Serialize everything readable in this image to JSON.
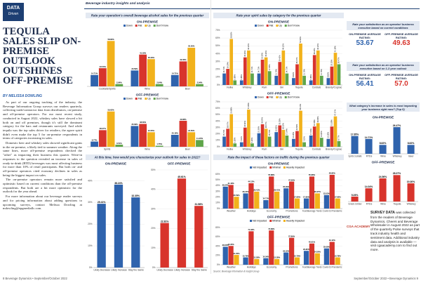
{
  "header": {
    "section": "DATA",
    "section_tag": "Driven",
    "tagline": "Beverage industry insights and analysis"
  },
  "article": {
    "title": "TEQUILA SALES SLIP ON-PREMISE OUTLOOK OUTSHINES OFF-PREMISE",
    "byline": "BY MELISSA DOWLING",
    "paragraphs": [
      "As part of our ongoing tracking of the industry, the Beverage Information Group surveys our readers quarterly, collecting trade/contractor data from distributors, on-premise and off-premise operators. For our most recent study, conducted in August 2022, whiskey sales have slowed a bit both on and off premises, though it's still the dominant category for the bars and restaurants surveyed. And while tequila was the top sales driver for retailers, the agave spirit didn't even make the top 5 for on-premise respondents in terms of categories increasing in sales.",
      "Domestic beer and whiskey sales showed significant gains in the on-premise, a likely tied to summer weather. Along the same lines, more off-premise respondents checked the \"other\" as impacting their business this quarter. Write-in responses to the question revealed an increase in sales of ready-to-drink (RTD) beverages was most affecting business for more than 10% of retail participants. But both on- and off-premise operators cited economy declines in sales as being the biggest impact on sales.",
      "The on-premise operators remain more satisfied and optimistic based on current conditions than the off-premise respondents. But both are a bit more optimistic for the outlook for the year ahead.",
      "For more information about our beverage reader surveys and for pricing information about adding questions to upcoming surveys, contact Melissa Dowling at mdowling@epgmediallc.com."
    ]
  },
  "ratings": [
    {
      "heading": "Rate your satisfaction as an operator/ business executive based on current conditions",
      "items": [
        {
          "label": "ON-PREMISE AVERAGE RATING:",
          "value": "53.67"
        },
        {
          "label": "OFF-PREMISE AVERAGE RATING:",
          "value": "49.63"
        }
      ]
    },
    {
      "heading": "Rate your satisfaction as an operator/ business executive based on 1-3 year outlook",
      "items": [
        {
          "label": "ON-PREMISE AVERAGE RATING:",
          "value": "56.41"
        },
        {
          "label": "OFF-PREMISE AVERAGE RATING:",
          "value": "57.0"
        }
      ]
    }
  ],
  "survey_note": {
    "logo": "CGA ACADEMY",
    "lead": "SURVEY DATA",
    "text": "was collected from the readers of Beverage Dynamics, Cheers and Beverage Wholesaler in August 2022 as part of the quarterly Pulse surveys that track industry health and sentiment data. Additional industry data and analysis is available — visit cgaacademy.com to find out more."
  },
  "footer": {
    "left": "8 Beverage Dynamics • September/October 2022",
    "right": "September/October 2022 • Beverage Dynamics 9"
  },
  "chart_data": [
    {
      "type": "bar",
      "title": "Rate your operation's overall beverage alcohol sales for the previous quarter",
      "subtitle": "ON-PREMISE",
      "legend": "top",
      "categories": [
        "Cocktails/Spirits",
        "Wine",
        "Beer"
      ],
      "ylim": [
        0,
        70
      ],
      "series": [
        {
          "name": "Down",
          "color": "#2f63ad",
          "values": [
            14.71,
            20.59,
            14.71
          ],
          "value_labels": [
            "14.71%",
            "20.59%",
            "14.71%"
          ]
        },
        {
          "name": "Flat",
          "color": "#d8342c",
          "values": [
            23.53,
            41.18,
            32.35
          ],
          "value_labels": [
            "23.53%",
            "41.18%",
            "32.35%"
          ]
        },
        {
          "name": "Up",
          "color": "#f2b21b",
          "values": [
            58.82,
            35.29,
            50.0
          ],
          "value_labels": [
            "58.82%",
            "35.29%",
            "50.00%"
          ]
        },
        {
          "name": "Don't Know",
          "color": "#5fa54a",
          "values": [
            2.94,
            2.94,
            2.94
          ],
          "value_labels": [
            "2.94%",
            "2.94%",
            "2.94%"
          ]
        }
      ]
    },
    {
      "type": "bar",
      "subtitle": "OFF-PREMISE",
      "legend": "top",
      "categories": [
        "Spirits",
        "Wine",
        "Beer"
      ],
      "ylim": [
        0,
        70
      ],
      "series": [
        {
          "name": "Down",
          "color": "#2f63ad",
          "values": [
            8.77,
            35.09,
            20.18
          ],
          "value_labels": [
            "8.77%",
            "35.09%",
            "20.18%"
          ]
        },
        {
          "name": "Flat",
          "color": "#d8342c",
          "values": [
            28.07,
            38.6,
            43.86
          ],
          "value_labels": [
            "28.07%",
            "38.60%",
            "43.86%"
          ]
        },
        {
          "name": "Up",
          "color": "#f2b21b",
          "values": [
            59.65,
            24.56,
            24.56
          ],
          "value_labels": [
            "59.65%",
            "24.56%",
            "24.56%"
          ]
        },
        {
          "name": "Don't Know",
          "color": "#5fa54a",
          "values": [
            3.51,
            1.75,
            11.4
          ],
          "value_labels": [
            "3.51%",
            "1.75%",
            "11.40%"
          ]
        }
      ]
    },
    {
      "type": "bar",
      "title": "At this time, how would you characterize your outlook for sales in 2022?",
      "subtitle": "ON-PREMISE",
      "categories": [
        "Likely Decrease",
        "Likely Increase",
        "Stay the Same"
      ],
      "color": "#2f63ad",
      "values": [
        29.41,
        38.24,
        32.35
      ],
      "value_labels": [
        "29.41%",
        "38.24%",
        "32.35%"
      ],
      "ylim": [
        0,
        45
      ],
      "yticks": [
        {
          "value": 0,
          "label": "0%"
        },
        {
          "value": 10,
          "label": "10%"
        },
        {
          "value": 20,
          "label": "20%"
        },
        {
          "value": 30,
          "label": "30%"
        },
        {
          "value": 40,
          "label": "40%"
        }
      ]
    },
    {
      "type": "bar",
      "subtitle": "OFF-PREMISE",
      "categories": [
        "Likely Decrease",
        "Likely Increase",
        "Stay the Same"
      ],
      "color": "#d8342c",
      "values": [
        22.81,
        45.61,
        31.58
      ],
      "value_labels": [
        "22.81%",
        "45.61%",
        "31.58%"
      ],
      "ylim": [
        0,
        50
      ],
      "yticks": [
        {
          "value": 0,
          "label": "0%"
        },
        {
          "value": 10,
          "label": "10%"
        },
        {
          "value": 20,
          "label": "20%"
        },
        {
          "value": 30,
          "label": "30%"
        },
        {
          "value": 40,
          "label": "40%"
        },
        {
          "value": 50,
          "label": "50%"
        }
      ]
    },
    {
      "type": "bar",
      "title": "Rate your spirit sales by category for the previous quarter",
      "subtitle": "ON-PREMISE",
      "legend": "top",
      "categories": [
        "Vodka",
        "Whiskey",
        "Rum",
        "Gin",
        "Tequila",
        "Cordials",
        "Brandy/Cognac"
      ],
      "ylim": [
        0,
        70
      ],
      "yticks": [
        {
          "value": 0,
          "label": "0%"
        },
        {
          "value": 10,
          "label": "10%"
        },
        {
          "value": 20,
          "label": "20%"
        },
        {
          "value": 30,
          "label": "30%"
        },
        {
          "value": 40,
          "label": "40%"
        },
        {
          "value": 50,
          "label": "50%"
        },
        {
          "value": 60,
          "label": "60%"
        },
        {
          "value": 70,
          "label": "70%"
        }
      ],
      "series": [
        {
          "name": "Down",
          "color": "#2f63ad",
          "values": [
            14.71,
            5.88,
            14.71,
            11.76,
            8.82,
            5.88,
            8.82
          ],
          "value_labels": [
            "14.71%",
            "5.88%",
            "14.71%",
            "11.76%",
            "8.82%",
            "5.88%",
            "8.82%"
          ]
        },
        {
          "name": "Flat",
          "color": "#d8342c",
          "values": [
            20.59,
            35.29,
            32.35,
            29.41,
            26.47,
            38.24,
            23.53
          ],
          "value_labels": [
            "20.59%",
            "35.29%",
            "32.35%",
            "29.41%",
            "26.47%",
            "38.24%",
            "23.53%"
          ]
        },
        {
          "name": "Up",
          "color": "#f2b21b",
          "values": [
            58.82,
            44.12,
            35.29,
            44.12,
            52.94,
            44.12,
            41.18
          ],
          "value_labels": [
            "58.82%",
            "44.12%",
            "35.29%",
            "44.12%",
            "52.94%",
            "44.12%",
            "41.18%"
          ]
        },
        {
          "name": "Don't Know",
          "color": "#5fa54a",
          "values": [
            5.88,
            14.71,
            17.65,
            14.71,
            11.76,
            11.76,
            26.47
          ],
          "value_labels": [
            "5.88%",
            "14.71%",
            "17.65%",
            "14.71%",
            "11.76%",
            "11.76%",
            "26.47%"
          ]
        }
      ]
    },
    {
      "type": "bar",
      "subtitle": "OFF-PREMISE",
      "legend": "top",
      "categories": [
        "Vodka",
        "Whiskey",
        "Rum",
        "Gin",
        "Tequila",
        "Cordials",
        "Brandy/Cognac"
      ],
      "ylim": [
        0,
        70
      ],
      "yticks": [
        {
          "value": 0,
          "label": "0%"
        },
        {
          "value": 10,
          "label": "10%"
        },
        {
          "value": 20,
          "label": "20%"
        },
        {
          "value": 30,
          "label": "30%"
        },
        {
          "value": 40,
          "label": "40%"
        },
        {
          "value": 50,
          "label": "50%"
        },
        {
          "value": 60,
          "label": "60%"
        },
        {
          "value": 70,
          "label": "70%"
        }
      ],
      "series": [
        {
          "name": "Down",
          "color": "#2f63ad",
          "values": [
            15.79,
            7.02,
            21.05,
            22.81,
            12.28,
            17.54,
            12.28
          ],
          "value_labels": [
            "15.79%",
            "7.02%",
            "21.05%",
            "22.81%",
            "12.28%",
            "17.54%",
            "12.28%"
          ]
        },
        {
          "name": "Flat",
          "color": "#d8342c",
          "values": [
            28.07,
            29.82,
            35.09,
            33.33,
            24.56,
            31.58,
            31.58
          ],
          "value_labels": [
            "28.07%",
            "29.82%",
            "35.09%",
            "33.33%",
            "24.56%",
            "31.58%",
            "31.58%"
          ]
        },
        {
          "name": "Up",
          "color": "#f2b21b",
          "values": [
            50.88,
            57.89,
            28.07,
            26.32,
            56.14,
            36.84,
            47.37
          ],
          "value_labels": [
            "50.88%",
            "57.89%",
            "28.07%",
            "26.32%",
            "56.14%",
            "36.84%",
            "47.37%"
          ]
        },
        {
          "name": "Don't Know",
          "color": "#5fa54a",
          "values": [
            5.26,
            5.26,
            15.79,
            17.54,
            7.02,
            14.04,
            8.77
          ],
          "value_labels": [
            "5.26%",
            "5.26%",
            "15.79%",
            "17.54%",
            "7.02%",
            "14.04%",
            "8.77%"
          ]
        }
      ]
    },
    {
      "type": "bar",
      "title": "Rate the impact of these factors on traffic during the previous quarter",
      "subtitle": "ON-PREMISE",
      "legend": "top",
      "categories": [
        "Weather",
        "Holidays",
        "Economy",
        "Promotions",
        "Food/Beverage Trends",
        "Covid-19 Pandemic"
      ],
      "ylim": [
        0,
        60
      ],
      "yticks": [
        {
          "value": 0,
          "label": "0%"
        },
        {
          "value": 10,
          "label": "10%"
        },
        {
          "value": 20,
          "label": "20%"
        },
        {
          "value": 30,
          "label": "30%"
        },
        {
          "value": 40,
          "label": "40%"
        },
        {
          "value": 50,
          "label": "50%"
        },
        {
          "value": 60,
          "label": "60%"
        }
      ],
      "series": [
        {
          "name": "Not Impacted",
          "color": "#2f63ad",
          "values": [
            38.24,
            26.47,
            14.71,
            35.29,
            17.65,
            23.53
          ],
          "value_labels": [
            "38.24%",
            "26.47%",
            "14.71%",
            "35.29%",
            "17.65%",
            "23.53%"
          ]
        },
        {
          "name": "Minimal",
          "color": "#d8342c",
          "values": [
            41.18,
            44.12,
            55.88,
            47.06,
            55.88,
            58.82
          ],
          "value_labels": [
            "41.18%",
            "44.12%",
            "55.88%",
            "47.06%",
            "55.88%",
            "58.82%"
          ]
        },
        {
          "name": "Heavily Impacted",
          "color": "#f2b21b",
          "values": [
            20.59,
            29.41,
            29.41,
            17.65,
            26.47,
            17.65
          ],
          "value_labels": [
            "20.59%",
            "29.41%",
            "29.41%",
            "17.65%",
            "26.47%",
            "17.65%"
          ]
        }
      ]
    },
    {
      "type": "bar",
      "subtitle": "OFF-PREMISE",
      "legend": "top",
      "source": "Source: Beverage Information & Insight Group",
      "categories": [
        "Weather",
        "Holidays",
        "Economy",
        "Promotions",
        "Food/Beverage Trends",
        "Covid-19 Pandemic"
      ],
      "ylim": [
        0,
        80
      ],
      "yticks": [
        {
          "value": 0,
          "label": "0%"
        },
        {
          "value": 20,
          "label": "20%"
        },
        {
          "value": 40,
          "label": "40%"
        },
        {
          "value": 60,
          "label": "60%"
        },
        {
          "value": 80,
          "label": "80%"
        }
      ],
      "series": [
        {
          "name": "Not Impacted",
          "color": "#2f63ad",
          "values": [
            38.6,
            15.79,
            14.04,
            26.32,
            29.82,
            35.09
          ],
          "value_labels": [
            "38.60%",
            "15.79%",
            "14.04%",
            "26.32%",
            "29.82%",
            "35.09%"
          ]
        },
        {
          "name": "Minimal",
          "color": "#d8342c",
          "values": [
            40.35,
            71.93,
            73.68,
            57.89,
            45.61,
            49.12
          ],
          "value_labels": [
            "40.35%",
            "71.93%",
            "73.68%",
            "57.89%",
            "45.61%",
            "49.12%"
          ]
        },
        {
          "name": "Heavily Impacted",
          "color": "#f2b21b",
          "values": [
            21.05,
            12.28,
            12.28,
            15.79,
            24.56,
            15.79
          ],
          "value_labels": [
            "21.05%",
            "12.28%",
            "12.28%",
            "15.79%",
            "24.56%",
            "15.79%"
          ]
        }
      ]
    },
    {
      "type": "bar",
      "title": "What category's increase in sales is most impacting your business right now? (Top 5)",
      "subtitle": "ON-PREMISE",
      "categories": [
        "Spirits Cocktails",
        "RTDs",
        "Wine",
        "Whiskey",
        "Beer"
      ],
      "color": "#2f63ad",
      "ylim": [
        0,
        30
      ],
      "values": [
        17.65,
        14.71,
        8.82,
        26.47,
        8.82
      ],
      "value_labels": [
        "17.65%",
        "14.71%",
        "8.82%",
        "26.47%",
        "8.82%"
      ]
    },
    {
      "type": "bar",
      "subtitle": "OFF-PREMISE",
      "categories": [
        "Domestic Craft Beer",
        "RTDs",
        "Wine",
        "Tequila",
        "Whiskey"
      ],
      "color": "#d8342c",
      "ylim": [
        0,
        35
      ],
      "values": [
        5.26,
        14.04,
        24.56,
        28.07,
        19.3
      ],
      "value_labels": [
        "5.26%",
        "14.04%",
        "24.56%",
        "28.07%",
        "19.30%"
      ]
    }
  ]
}
